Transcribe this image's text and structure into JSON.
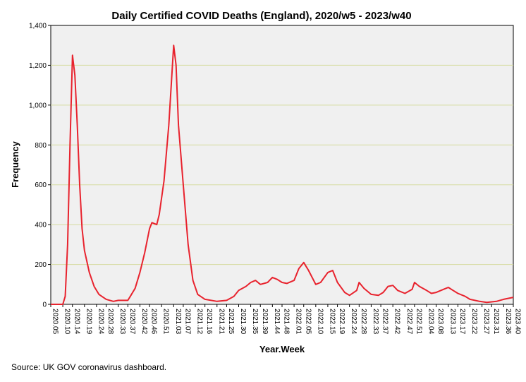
{
  "source": "Source: UK GOV coronavirus dashboard.",
  "colors": {
    "line": "#e8232e",
    "plot_bg": "#f0f0f0",
    "gridline": "#d6dca0",
    "axis": "#000000"
  },
  "chart_data": {
    "type": "line",
    "title": "Daily Certified COVID Deaths (England), 2020/w5 - 2023/w40",
    "xlabel": "Year.Week",
    "ylabel": "Frequency",
    "ylim": [
      0,
      1400
    ],
    "yticks": [
      0,
      200,
      400,
      600,
      800,
      1000,
      1200,
      1400
    ],
    "ytick_labels": [
      "0",
      "200",
      "400",
      "600",
      "800",
      "1,000",
      "1,200",
      "1,400"
    ],
    "grid": "horizontal",
    "x_tick_labels": [
      "2020.05",
      "2020.10",
      "2020.14",
      "2020.19",
      "2020.24",
      "2020.28",
      "2020.33",
      "2020.37",
      "2020.42",
      "2020.46",
      "2020.51",
      "2021.03",
      "2021.07",
      "2021.12",
      "2021.16",
      "2021.21",
      "2021.25",
      "2021.30",
      "2021.35",
      "2021.39",
      "2021.44",
      "2021.48",
      "2022.01",
      "2022.05",
      "2022.10",
      "2022.15",
      "2022.19",
      "2022.24",
      "2022.28",
      "2022.33",
      "2022.37",
      "2022.42",
      "2022.47",
      "2022.51",
      "2023.04",
      "2023.08",
      "2023.13",
      "2023.17",
      "2023.22",
      "2023.27",
      "2023.31",
      "2023.36",
      "2023.40"
    ],
    "series": [
      {
        "x": [
          "2020.05",
          "2020.10",
          "2020.11",
          "2020.12",
          "2020.13",
          "2020.14",
          "2020.15",
          "2020.16",
          "2020.17",
          "2020.18",
          "2020.19",
          "2020.21",
          "2020.23",
          "2020.25",
          "2020.28",
          "2020.31",
          "2020.33",
          "2020.37",
          "2020.38",
          "2020.40",
          "2020.42",
          "2020.44",
          "2020.46",
          "2020.47",
          "2020.49",
          "2020.50",
          "2020.52",
          "2021.01",
          "2021.03",
          "2021.04",
          "2021.05",
          "2021.07",
          "2021.09",
          "2021.11",
          "2021.13",
          "2021.16",
          "2021.21",
          "2021.25",
          "2021.28",
          "2021.30",
          "2021.33",
          "2021.35",
          "2021.37",
          "2021.39",
          "2021.42",
          "2021.44",
          "2021.46",
          "2021.48",
          "2021.50",
          "2022.01",
          "2022.03",
          "2022.05",
          "2022.07",
          "2022.10",
          "2022.12",
          "2022.15",
          "2022.17",
          "2022.19",
          "2022.22",
          "2022.24",
          "2022.27",
          "2022.28",
          "2022.30",
          "2022.33",
          "2022.36",
          "2022.38",
          "2022.40",
          "2022.42",
          "2022.44",
          "2022.47",
          "2022.50",
          "2022.51",
          "2023.01",
          "2023.04",
          "2023.06",
          "2023.08",
          "2023.11",
          "2023.13",
          "2023.15",
          "2023.17",
          "2023.20",
          "2023.22",
          "2023.26",
          "2023.29",
          "2023.33",
          "2023.36",
          "2023.40"
        ],
        "values": [
          0,
          0,
          40,
          300,
          800,
          1250,
          1150,
          900,
          600,
          380,
          270,
          160,
          90,
          50,
          25,
          15,
          20,
          20,
          40,
          80,
          160,
          260,
          380,
          410,
          400,
          450,
          620,
          900,
          1300,
          1200,
          900,
          600,
          300,
          120,
          50,
          25,
          15,
          20,
          40,
          70,
          90,
          110,
          120,
          100,
          110,
          135,
          125,
          110,
          105,
          120,
          180,
          210,
          170,
          100,
          110,
          160,
          170,
          110,
          60,
          45,
          70,
          110,
          80,
          50,
          45,
          60,
          90,
          95,
          70,
          55,
          75,
          110,
          90,
          70,
          55,
          60,
          75,
          85,
          70,
          55,
          40,
          25,
          15,
          10,
          15,
          25,
          35
        ]
      }
    ]
  }
}
